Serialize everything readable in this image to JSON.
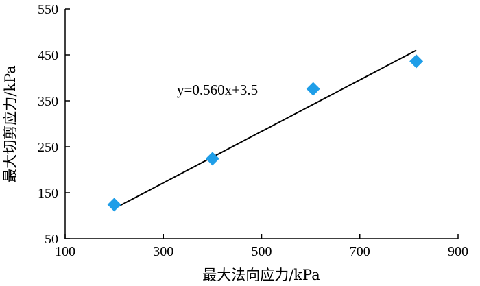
{
  "chart_data": {
    "type": "scatter",
    "xlabel": "最大法向应力/kPa",
    "ylabel": "最大切剪应力/kPa",
    "xlim": [
      100,
      900
    ],
    "ylim": [
      50,
      550
    ],
    "xticks": [
      100,
      300,
      500,
      700,
      900
    ],
    "yticks": [
      50,
      150,
      250,
      350,
      450,
      550
    ],
    "xtick_labels": [
      "100",
      "300",
      "500",
      "700",
      "900"
    ],
    "ytick_labels": [
      "50",
      "150",
      "250",
      "350",
      "450",
      "550"
    ],
    "points": [
      {
        "x": 200,
        "y": 124
      },
      {
        "x": 400,
        "y": 224
      },
      {
        "x": 605,
        "y": 376
      },
      {
        "x": 815,
        "y": 436
      }
    ],
    "fit": {
      "slope": 0.56,
      "intercept": 3.5,
      "x_range": [
        200,
        815
      ],
      "equation": "y=0.560x+3.5"
    },
    "marker_color": "#1f9ee8",
    "line_color": "#000000",
    "grid": false
  }
}
